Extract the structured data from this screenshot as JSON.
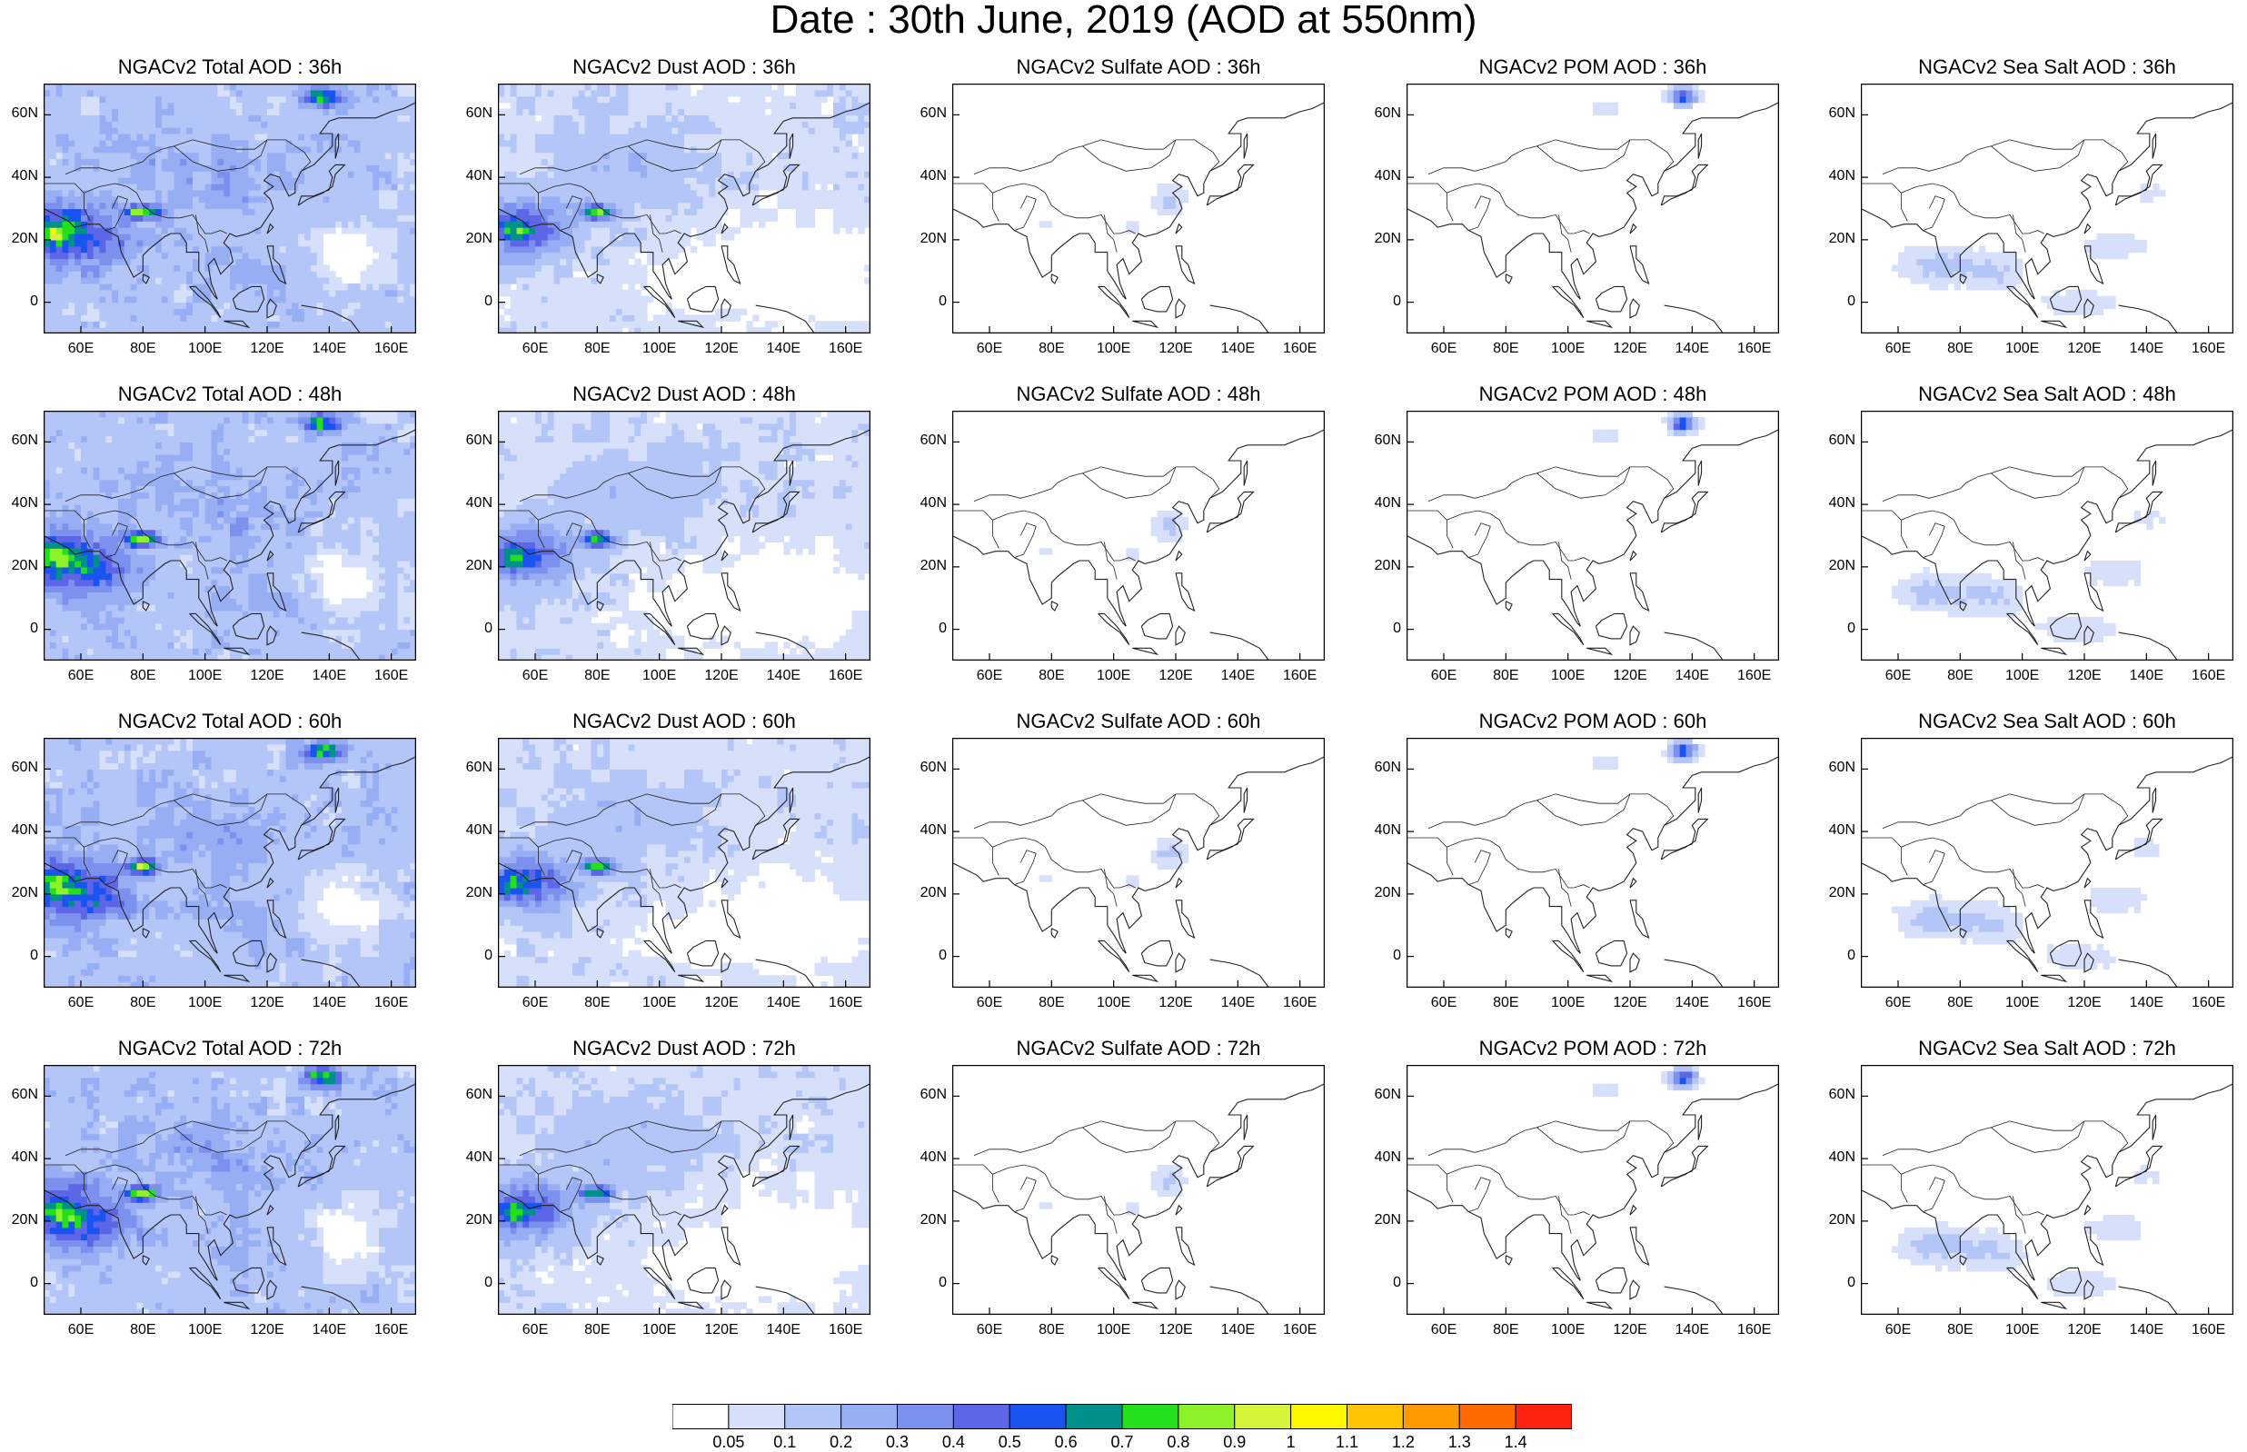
{
  "title": "Date : 30th June, 2019 (AOD at 550nm)",
  "rows": [
    [
      "NGACv2 Total AOD : 36h",
      "NGACv2 Dust AOD : 36h",
      "NGACv2 Sulfate AOD : 36h",
      "NGACv2 POM AOD : 36h",
      "NGACv2 Sea Salt AOD : 36h"
    ],
    [
      "NGACv2 Total AOD : 48h",
      "NGACv2 Dust AOD : 48h",
      "NGACv2 Sulfate AOD : 48h",
      "NGACv2 POM AOD : 48h",
      "NGACv2 Sea Salt AOD : 48h"
    ],
    [
      "NGACv2 Total AOD : 60h",
      "NGACv2 Dust AOD : 60h",
      "NGACv2 Sulfate AOD : 60h",
      "NGACv2 POM AOD : 60h",
      "NGACv2 Sea Salt AOD : 60h"
    ],
    [
      "NGACv2 Total AOD : 72h",
      "NGACv2 Dust AOD : 72h",
      "NGACv2 Sulfate AOD : 72h",
      "NGACv2 POM AOD : 72h",
      "NGACv2 Sea Salt  AOD : 72h"
    ]
  ],
  "lat_labels": [
    "60N",
    "40N",
    "20N",
    "0"
  ],
  "lon_labels": [
    "60E",
    "80E",
    "100E",
    "120E",
    "140E",
    "160E"
  ],
  "colorbar": {
    "labels": [
      "0.05",
      "0.1",
      "0.2",
      "0.3",
      "0.4",
      "0.5",
      "0.6",
      "0.7",
      "0.8",
      "0.9",
      "1",
      "1.1",
      "1.2",
      "1.3",
      "1.4"
    ],
    "colors": [
      "#ffffff",
      "#d6e0fa",
      "#b4c5f7",
      "#97aef5",
      "#7c90ee",
      "#5c66e6",
      "#1a54f0",
      "#00908c",
      "#24e01c",
      "#8ef22a",
      "#d6f53a",
      "#fff700",
      "#ffc400",
      "#ff9900",
      "#ff6a00",
      "#ff2410"
    ]
  }
}
